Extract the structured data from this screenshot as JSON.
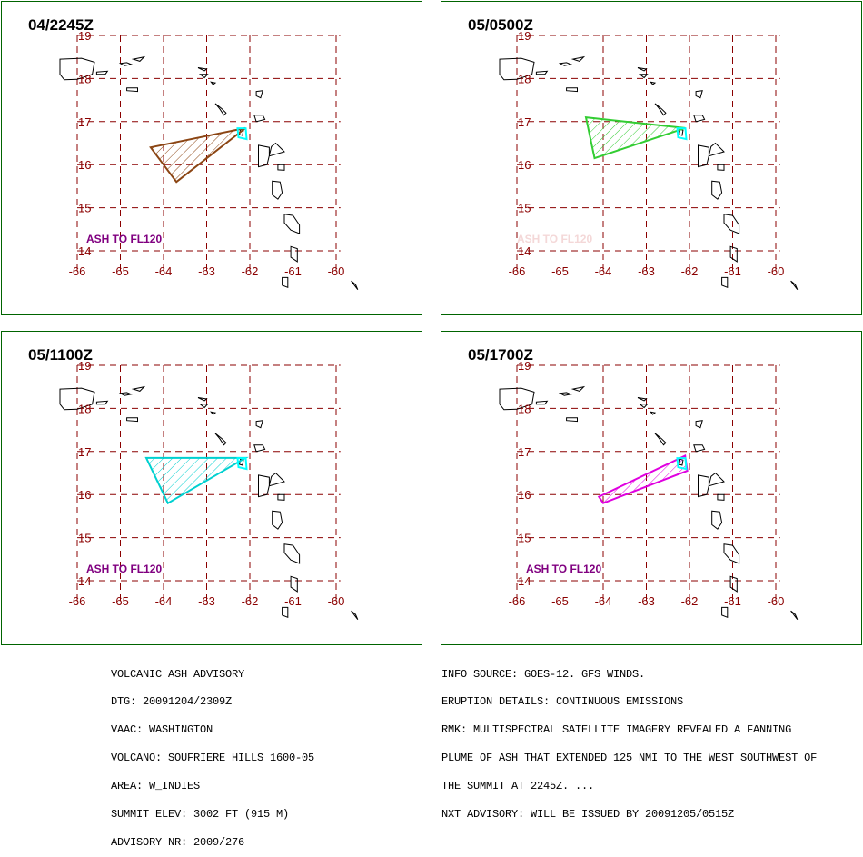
{
  "map": {
    "longitudes": [
      -66,
      -65,
      -64,
      -63,
      -62,
      -61,
      -60
    ],
    "latitudes": [
      19,
      18,
      17,
      16,
      15,
      14
    ],
    "lon_labels": [
      "-66",
      "-65",
      "-64",
      "-63",
      "-62",
      "-61",
      "-60"
    ],
    "lat_labels": [
      "19",
      "18",
      "17",
      "16",
      "15",
      "14"
    ],
    "grid_color": "#8b0000",
    "label_color": "#8b0000",
    "coast_color": "#000000"
  },
  "panels": [
    {
      "title": "04/2245Z",
      "ash_label": "ASH TO FL120",
      "ash_label_faint": false,
      "color": "#8b4513",
      "plume": [
        [
          -64.3,
          16.4
        ],
        [
          -62.1,
          16.85
        ],
        [
          -63.7,
          15.6
        ]
      ]
    },
    {
      "title": "05/0500Z",
      "ash_label": "ASH TO FL120",
      "ash_label_faint": true,
      "color": "#32cd32",
      "plume": [
        [
          -64.4,
          17.1
        ],
        [
          -62.1,
          16.85
        ],
        [
          -64.2,
          16.15
        ]
      ]
    },
    {
      "title": "05/1100Z",
      "ash_label": "ASH TO FL120",
      "ash_label_faint": false,
      "color": "#00d0d0",
      "plume": [
        [
          -64.4,
          16.85
        ],
        [
          -62.1,
          16.85
        ],
        [
          -63.9,
          15.8
        ]
      ]
    },
    {
      "title": "05/1700Z",
      "ash_label": "ASH TO FL120",
      "ash_label_faint": false,
      "color": "#e000e0",
      "plume": [
        [
          -64.1,
          15.95
        ],
        [
          -62.1,
          16.9
        ],
        [
          -62.05,
          16.55
        ],
        [
          -64.0,
          15.8
        ]
      ]
    }
  ],
  "volcano": {
    "lon": -62.2,
    "lat": 16.72,
    "marker_color": "#00ffff"
  },
  "advisory": {
    "left_lines": [
      "VOLCANIC ASH ADVISORY",
      "DTG: 20091204/2309Z",
      "VAAC: WASHINGTON",
      "VOLCANO: SOUFRIERE HILLS 1600-05",
      "AREA: W_INDIES",
      "SUMMIT ELEV: 3002 FT (915 M)",
      "ADVISORY NR: 2009/276"
    ],
    "right_lines": [
      "INFO SOURCE: GOES-12. GFS WINDS.",
      "ERUPTION DETAILS: CONTINUOUS EMISSIONS",
      "RMK: MULTISPECTRAL SATELLITE IMAGERY REVEALED A FANNING",
      "PLUME OF ASH THAT EXTENDED 125 NMI TO THE WEST SOUTHWEST OF",
      "THE SUMMIT AT 2245Z. ...",
      "NXT ADVISORY: WILL BE ISSUED BY 20091205/0515Z"
    ]
  }
}
